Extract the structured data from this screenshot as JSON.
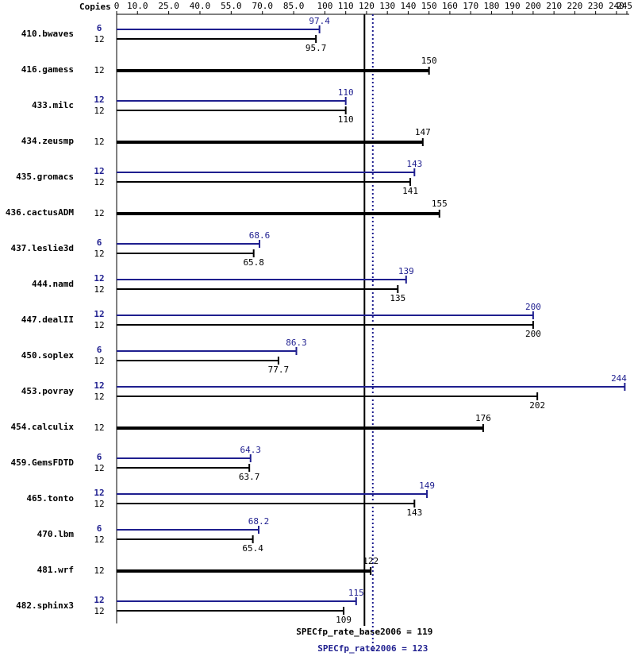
{
  "chart_data": {
    "type": "bar",
    "copies_header": "Copies",
    "categories": [
      "410.bwaves",
      "416.gamess",
      "433.milc",
      "434.zeusmp",
      "435.gromacs",
      "436.cactusADM",
      "437.leslie3d",
      "444.namd",
      "447.dealII",
      "450.soplex",
      "453.povray",
      "454.calculix",
      "459.GemsFDTD",
      "465.tonto",
      "470.lbm",
      "481.wrf",
      "482.sphinx3"
    ],
    "series": [
      {
        "color": "#1f1f8f",
        "copies": [
          6,
          null,
          12,
          null,
          12,
          null,
          6,
          12,
          12,
          6,
          12,
          null,
          6,
          12,
          6,
          null,
          12
        ],
        "values": [
          97.4,
          null,
          110,
          null,
          143,
          null,
          68.6,
          139,
          200,
          86.3,
          244,
          null,
          64.3,
          149,
          68.2,
          null,
          115
        ]
      },
      {
        "color": "#000000",
        "copies": [
          12,
          12,
          12,
          12,
          12,
          12,
          12,
          12,
          12,
          12,
          12,
          12,
          12,
          12,
          12,
          12,
          12
        ],
        "values": [
          95.7,
          150,
          110,
          147,
          141,
          155,
          65.8,
          135,
          200,
          77.7,
          202,
          176,
          63.7,
          143,
          65.4,
          122,
          109
        ]
      }
    ],
    "xlim": [
      0,
      245
    ],
    "xticks": [
      0,
      {
        "value": 10,
        "label": "10.0"
      },
      {
        "value": 25,
        "label": "25.0"
      },
      {
        "value": 40,
        "label": "40.0"
      },
      {
        "value": 55,
        "label": "55.0"
      },
      {
        "value": 70,
        "label": "70.0"
      },
      {
        "value": 85,
        "label": "85.0"
      },
      100,
      110,
      120,
      130,
      140,
      150,
      160,
      170,
      180,
      190,
      200,
      210,
      220,
      230,
      240,
      245
    ],
    "reference_lines": [
      {
        "value": 119,
        "label": "SPECfp_rate_base2006 = 119",
        "color": "#000000",
        "style": "solid"
      },
      {
        "value": 123,
        "label": "SPECfp_rate2006 = 123",
        "color": "#1f1f8f",
        "style": "dotted"
      }
    ]
  }
}
